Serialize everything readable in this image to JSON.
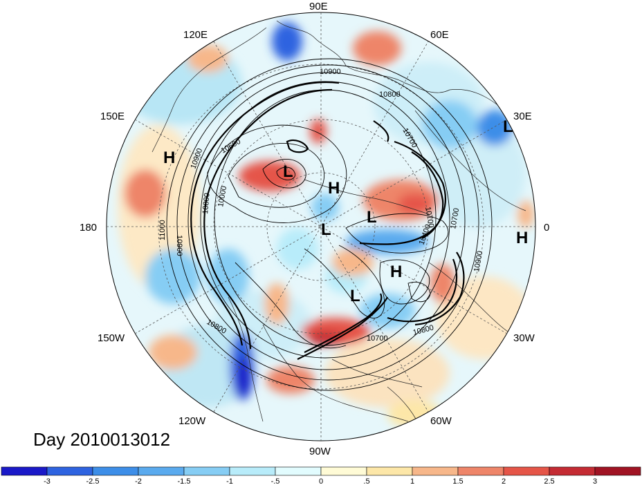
{
  "title": "Day 2010013012",
  "longitude_labels": [
    {
      "text": "90E",
      "lon": 90
    },
    {
      "text": "60E",
      "lon": 60
    },
    {
      "text": "30E",
      "lon": 30
    },
    {
      "text": "0",
      "lon": 0
    },
    {
      "text": "30W",
      "lon": -30
    },
    {
      "text": "60W",
      "lon": -60
    },
    {
      "text": "90W",
      "lon": -90
    },
    {
      "text": "120W",
      "lon": -120
    },
    {
      "text": "150W",
      "lon": -150
    },
    {
      "text": "180",
      "lon": 180
    },
    {
      "text": "150E",
      "lon": 150
    },
    {
      "text": "120E",
      "lon": 120
    }
  ],
  "pressure_centers": [
    "H",
    "L",
    "H",
    "L",
    "L",
    "H",
    "L",
    "L",
    "H"
  ],
  "contour_labels": [
    "10900",
    "10800",
    "10700",
    "10600",
    "10000",
    "11000",
    "10900",
    "10900",
    "10800",
    "10700",
    "10800",
    "10700",
    "10900",
    "10400",
    "10700",
    "10800"
  ],
  "colorbar": {
    "ticks": [
      "-3",
      "-2.5",
      "-2",
      "-1.5",
      "-1",
      "-.5",
      "0",
      ".5",
      "1",
      "1.5",
      "2",
      "2.5",
      "3"
    ],
    "colors": [
      "#1a19c8",
      "#2e63e0",
      "#3d8ee8",
      "#5aaaee",
      "#86cdf4",
      "#b8ecfa",
      "#e2fcfe",
      "#fffbd6",
      "#fde7a8",
      "#f7b78a",
      "#ee8569",
      "#e55548",
      "#c42b33",
      "#a01323"
    ]
  }
}
